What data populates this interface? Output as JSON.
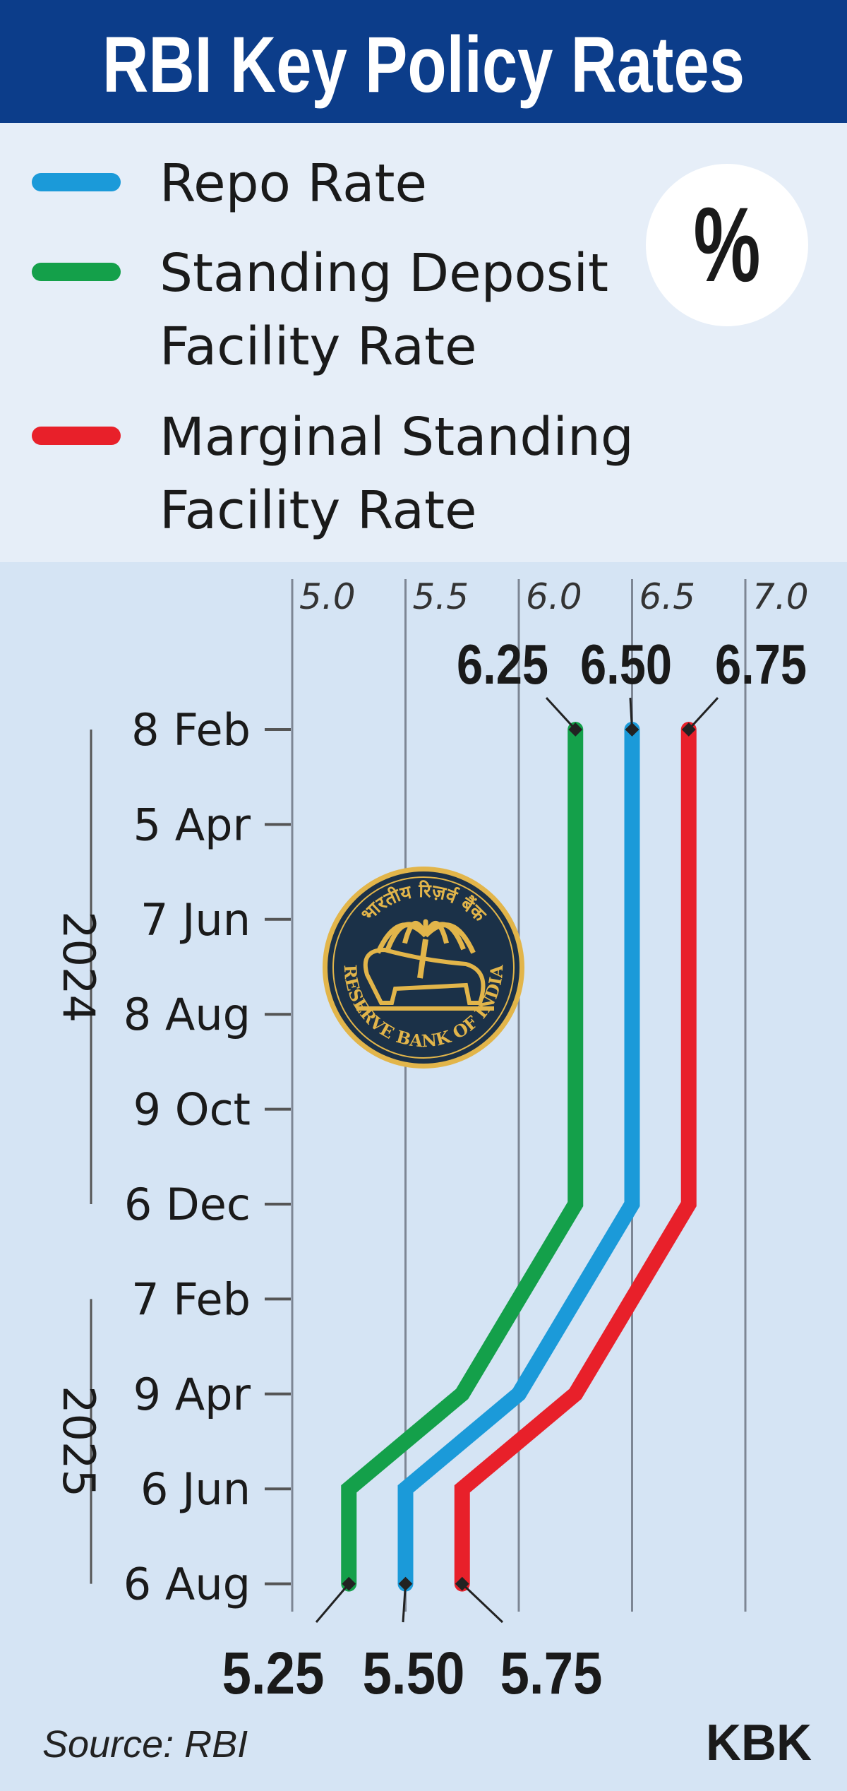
{
  "header": {
    "title": "RBI Key Policy Rates",
    "unit_badge": "%"
  },
  "legend": [
    {
      "series": "sdf_placeholder_none"
    }
  ],
  "colors": {
    "header_bg": "#0c3d8a",
    "legend_bg": "#e6eef8",
    "chart_bg": "#d5e4f4",
    "repo": "#1b9ad9",
    "sdf": "#14a04a",
    "msf": "#e8202a",
    "seal_bg": "#1b3148",
    "seal_gold": "#e2b54a"
  },
  "seal": {
    "text_top": "भारतीय रिज़र्व बैंक",
    "text_bottom": "RESERVE BANK OF INDIA"
  },
  "chart_data": {
    "type": "line",
    "orientation": "vertical-time-axis",
    "title": "RBI Key Policy Rates",
    "unit": "%",
    "x_axis": {
      "range": [
        5.0,
        7.0
      ],
      "ticks": [
        "5.0",
        "5.5",
        "6.0",
        "6.5",
        "7.0"
      ],
      "grid": true
    },
    "y_axis": {
      "categories": [
        "8 Feb",
        "5 Apr",
        "7 Jun",
        "8 Aug",
        "9 Oct",
        "6 Dec",
        "7 Feb",
        "9 Apr",
        "6 Jun",
        "6 Aug"
      ],
      "year_groups": [
        {
          "label": "2024",
          "from": 0,
          "to": 5
        },
        {
          "label": "2025",
          "from": 6,
          "to": 9
        }
      ]
    },
    "series": [
      {
        "key": "repo",
        "name": "Repo Rate",
        "values": [
          6.5,
          6.5,
          6.5,
          6.5,
          6.5,
          6.5,
          6.25,
          6.0,
          5.5,
          5.5
        ]
      },
      {
        "key": "sdf",
        "name": "Standing Deposit Facility Rate",
        "values": [
          6.25,
          6.25,
          6.25,
          6.25,
          6.25,
          6.25,
          6.0,
          5.75,
          5.25,
          5.25
        ]
      },
      {
        "key": "msf",
        "name": "Marginal Standing Facility Rate",
        "values": [
          6.75,
          6.75,
          6.75,
          6.75,
          6.75,
          6.75,
          6.5,
          6.25,
          5.75,
          5.75
        ]
      }
    ],
    "annotations": {
      "start": [
        "6.25",
        "6.50",
        "6.75"
      ],
      "end": [
        "5.25",
        "5.50",
        "5.75"
      ]
    },
    "legend_placement": "top"
  },
  "legend_items": [
    {
      "key": "repo",
      "lines": [
        "Repo Rate"
      ]
    },
    {
      "key": "sdf",
      "lines": [
        "Standing Deposit",
        "Facility Rate"
      ]
    },
    {
      "key": "msf",
      "lines": [
        "Marginal Standing",
        "Facility Rate"
      ]
    }
  ],
  "footer": {
    "source": "Source: RBI",
    "credit": "KBK"
  }
}
